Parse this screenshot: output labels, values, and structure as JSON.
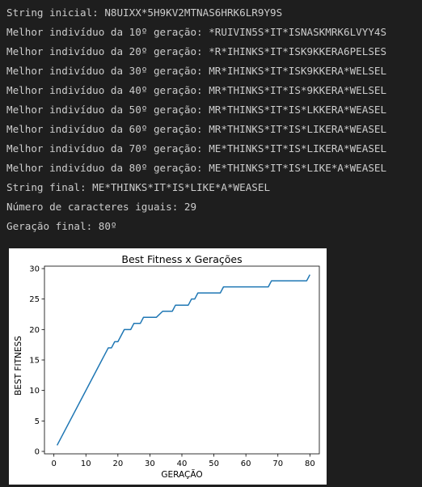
{
  "console": {
    "lines": [
      "String inicial: N8UIXX*5H9KV2MTNAS6HRK6LR9Y9S",
      "Melhor indivíduo da 10º geração: *RUIVIN5S*IT*ISNASKMRK6LVYY4S",
      "Melhor indivíduo da 20º geração: *R*IHINKS*IT*ISK9KKERA6PELSES",
      "Melhor indivíduo da 30º geração: MR*IHINKS*IT*ISK9KKERA*WELSEL",
      "Melhor indivíduo da 40º geração: MR*THINKS*IT*IS*9KKERA*WELSEL",
      "Melhor indivíduo da 50º geração: MR*THINKS*IT*IS*LKKERA*WEASEL",
      "Melhor indivíduo da 60º geração: MR*THINKS*IT*IS*LIKERA*WEASEL",
      "Melhor indivíduo da 70º geração: ME*THINKS*IT*IS*LIKERA*WEASEL",
      "Melhor indivíduo da 80º geração: ME*THINKS*IT*IS*LIKE*A*WEASEL",
      "String final: ME*THINKS*IT*IS*LIKE*A*WEASEL",
      "Número de caracteres iguais: 29",
      "Geração final: 80º"
    ]
  },
  "chart_data": {
    "type": "line",
    "title": "Best Fitness x Gerações",
    "xlabel": "GERAÇÃO",
    "ylabel": "BEST FITNESS",
    "xlim": [
      -2.95,
      82.95
    ],
    "ylim": [
      -0.4,
      30.4
    ],
    "xticks": [
      0,
      10,
      20,
      30,
      40,
      50,
      60,
      70,
      80
    ],
    "yticks": [
      0,
      5,
      10,
      15,
      20,
      25,
      30
    ],
    "grid": false,
    "colors": {
      "line": "#1f77b4"
    },
    "series": [
      {
        "x": [
          1,
          17,
          18,
          19,
          20,
          21,
          22,
          24,
          25,
          27,
          28,
          29,
          30,
          32,
          34,
          35,
          37,
          38,
          39,
          40,
          42,
          43,
          44,
          45,
          46,
          48,
          50,
          51,
          52,
          53,
          55,
          57,
          60,
          64,
          66,
          67,
          68,
          70,
          73,
          75,
          79,
          80
        ],
        "y": [
          1,
          17,
          17,
          18,
          18,
          19,
          20,
          20,
          21,
          21,
          22,
          22,
          22,
          22,
          23,
          23,
          23,
          24,
          24,
          24,
          24,
          25,
          25,
          26,
          26,
          26,
          26,
          26,
          26,
          27,
          27,
          27,
          27,
          27,
          27,
          27,
          28,
          28,
          28,
          28,
          28,
          29
        ]
      }
    ]
  }
}
